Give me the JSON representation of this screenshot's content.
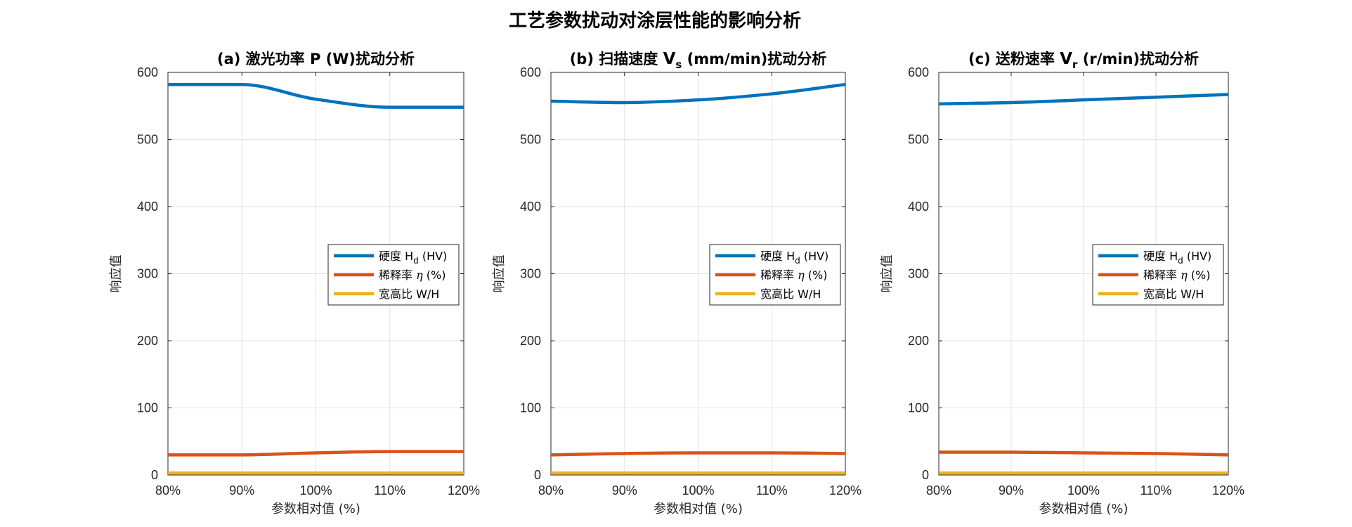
{
  "figure": {
    "title": "工艺参数扰动对涂层性能的影响分析"
  },
  "colors": {
    "hardness": "#0072BD",
    "dilution": "#D95319",
    "ratio": "#EDB120",
    "grid": "#e3e3e3",
    "axis": "#262626"
  },
  "chart_data": [
    {
      "type": "line",
      "title": "(a) 激光功率 P (W)扰动分析",
      "xlabel": "参数相对值 (%)",
      "ylabel": "响应值",
      "x": [
        80,
        90,
        100,
        110,
        120
      ],
      "xtick_labels": [
        "80%",
        "90%",
        "100%",
        "110%",
        "120%"
      ],
      "ytick_labels": [
        "0",
        "100",
        "200",
        "300",
        "400",
        "500",
        "600"
      ],
      "xlim": [
        80,
        120
      ],
      "ylim": [
        0,
        600
      ],
      "grid": true,
      "legend_position": "right",
      "series": [
        {
          "name": "硬度 Hd (HV)",
          "values": [
            582,
            582,
            560,
            548,
            548
          ]
        },
        {
          "name": "稀释率 η (%)",
          "values": [
            30,
            30,
            33,
            35,
            35
          ]
        },
        {
          "name": "宽高比 W/H",
          "values": [
            3,
            3,
            3,
            3,
            3
          ]
        }
      ]
    },
    {
      "type": "line",
      "title": "(b) 扫描速度 Vs (mm/min)扰动分析",
      "xlabel": "参数相对值 (%)",
      "ylabel": "响应值",
      "x": [
        80,
        90,
        100,
        110,
        120
      ],
      "xtick_labels": [
        "80%",
        "90%",
        "100%",
        "110%",
        "120%"
      ],
      "ytick_labels": [
        "0",
        "100",
        "200",
        "300",
        "400",
        "500",
        "600"
      ],
      "xlim": [
        80,
        120
      ],
      "ylim": [
        0,
        600
      ],
      "grid": true,
      "legend_position": "right",
      "series": [
        {
          "name": "硬度 Hd (HV)",
          "values": [
            557,
            555,
            559,
            568,
            582
          ]
        },
        {
          "name": "稀释率 η (%)",
          "values": [
            30,
            32,
            33,
            33,
            32
          ]
        },
        {
          "name": "宽高比 W/H",
          "values": [
            3,
            3,
            3,
            3,
            3
          ]
        }
      ]
    },
    {
      "type": "line",
      "title": "(c) 送粉速率 Vr (r/min)扰动分析",
      "xlabel": "参数相对值 (%)",
      "ylabel": "响应值",
      "x": [
        80,
        90,
        100,
        110,
        120
      ],
      "xtick_labels": [
        "80%",
        "90%",
        "100%",
        "110%",
        "120%"
      ],
      "ytick_labels": [
        "0",
        "100",
        "200",
        "300",
        "400",
        "500",
        "600"
      ],
      "xlim": [
        80,
        120
      ],
      "ylim": [
        0,
        600
      ],
      "grid": true,
      "legend_position": "right",
      "series": [
        {
          "name": "硬度 Hd (HV)",
          "values": [
            553,
            555,
            559,
            563,
            567
          ]
        },
        {
          "name": "稀释率 η (%)",
          "values": [
            34,
            34,
            33,
            32,
            30
          ]
        },
        {
          "name": "宽高比 W/H",
          "values": [
            3,
            3,
            3,
            3,
            3
          ]
        }
      ]
    }
  ],
  "panels": [
    {
      "title_prefix": "(b) 扫描速度 ",
      "title_var": "V",
      "title_sub": "s",
      "title_suffix": " (mm/min)扰动分析"
    },
    {
      "title_prefix": "(c) 送粉速率 ",
      "title_var": "V",
      "title_sub": "r",
      "title_suffix": " (r/min)扰动分析"
    }
  ],
  "legend": [
    {
      "prefix": "硬度 H",
      "sub": "d",
      "suffix": " (HV)"
    },
    {
      "prefix": "稀释率 ",
      "italic": "η",
      "suffix": " (%)"
    },
    {
      "prefix": "宽高比 W/H"
    }
  ]
}
